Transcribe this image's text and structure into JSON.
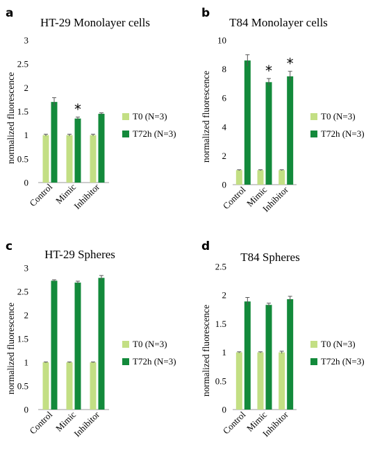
{
  "colors": {
    "t0": "#c3df84",
    "t72": "#138a3b",
    "axis": "#9a9a9a",
    "err": "#555555"
  },
  "chart_data": [
    {
      "letter": "a",
      "type": "bar",
      "title": "HT-29 Monolayer cells",
      "ylabel": "normalized fluorescence",
      "categories": [
        "Control",
        "Mimic",
        "Inhibitor"
      ],
      "ylim": [
        0,
        3
      ],
      "yticks": [
        0,
        0.5,
        1,
        1.5,
        2,
        2.5,
        3
      ],
      "ytick_labels": [
        "0",
        "0.5",
        "1",
        "1.5",
        "2",
        "2.5",
        "3"
      ],
      "series": [
        {
          "name": "T0 (N=3)",
          "color_key": "t0",
          "values": [
            1.0,
            1.0,
            1.0
          ],
          "errors": [
            0.02,
            0.02,
            0.02
          ]
        },
        {
          "name": "T72h (N=3)",
          "color_key": "t72",
          "values": [
            1.7,
            1.35,
            1.45
          ],
          "errors": [
            0.09,
            0.03,
            0.02
          ]
        }
      ],
      "stars": [
        "",
        "*",
        ""
      ],
      "legend_position": "right"
    },
    {
      "letter": "b",
      "type": "bar",
      "title": "T84 Monolayer cells",
      "ylabel": "normalized fluorescence",
      "categories": [
        "Control",
        "Mimic",
        "Inhibitor"
      ],
      "ylim": [
        0,
        10
      ],
      "yticks": [
        0,
        2,
        4,
        6,
        8,
        10
      ],
      "ytick_labels": [
        "0",
        "2",
        "4",
        "6",
        "8",
        "10"
      ],
      "series": [
        {
          "name": "T0 (N=3)",
          "color_key": "t0",
          "values": [
            1.0,
            1.0,
            1.0
          ],
          "errors": [
            0.03,
            0.03,
            0.03
          ]
        },
        {
          "name": "T72h (N=3)",
          "color_key": "t72",
          "values": [
            8.6,
            7.1,
            7.5
          ],
          "errors": [
            0.4,
            0.25,
            0.35
          ]
        }
      ],
      "stars": [
        "",
        "*",
        "*"
      ],
      "legend_position": "right"
    },
    {
      "letter": "c",
      "type": "bar",
      "title": "HT-29 Spheres",
      "ylabel": "normalized fluorescence",
      "categories": [
        "Control",
        "Mimic",
        "Inhibitor"
      ],
      "ylim": [
        0,
        3
      ],
      "yticks": [
        0,
        0.5,
        1,
        1.5,
        2,
        2.5,
        3
      ],
      "ytick_labels": [
        "0",
        "0.5",
        "1",
        "1.5",
        "2",
        "2.5",
        "3"
      ],
      "series": [
        {
          "name": "T0 (N=3)",
          "color_key": "t0",
          "values": [
            1.0,
            1.0,
            1.0
          ],
          "errors": [
            0.01,
            0.01,
            0.01
          ]
        },
        {
          "name": "T72h (N=3)",
          "color_key": "t72",
          "values": [
            2.73,
            2.69,
            2.79
          ],
          "errors": [
            0.02,
            0.03,
            0.05
          ]
        }
      ],
      "stars": [
        "",
        "",
        ""
      ],
      "legend_position": "right"
    },
    {
      "letter": "d",
      "type": "bar",
      "title": "T84 Spheres",
      "ylabel": "normalized fluorescence",
      "categories": [
        "Control",
        "Mimic",
        "Inhibitor"
      ],
      "ylim": [
        0,
        2.5
      ],
      "yticks": [
        0,
        0.5,
        1,
        1.5,
        2,
        2.5
      ],
      "ytick_labels": [
        "0",
        "0.5",
        "1",
        "1.5",
        "2",
        "2.5"
      ],
      "series": [
        {
          "name": "T0 (N=3)",
          "color_key": "t0",
          "values": [
            1.0,
            1.0,
            1.0
          ],
          "errors": [
            0.01,
            0.01,
            0.02
          ]
        },
        {
          "name": "T72h (N=3)",
          "color_key": "t72",
          "values": [
            1.89,
            1.83,
            1.93
          ],
          "errors": [
            0.07,
            0.03,
            0.05
          ]
        }
      ],
      "stars": [
        "",
        "",
        ""
      ],
      "legend_position": "right"
    }
  ]
}
